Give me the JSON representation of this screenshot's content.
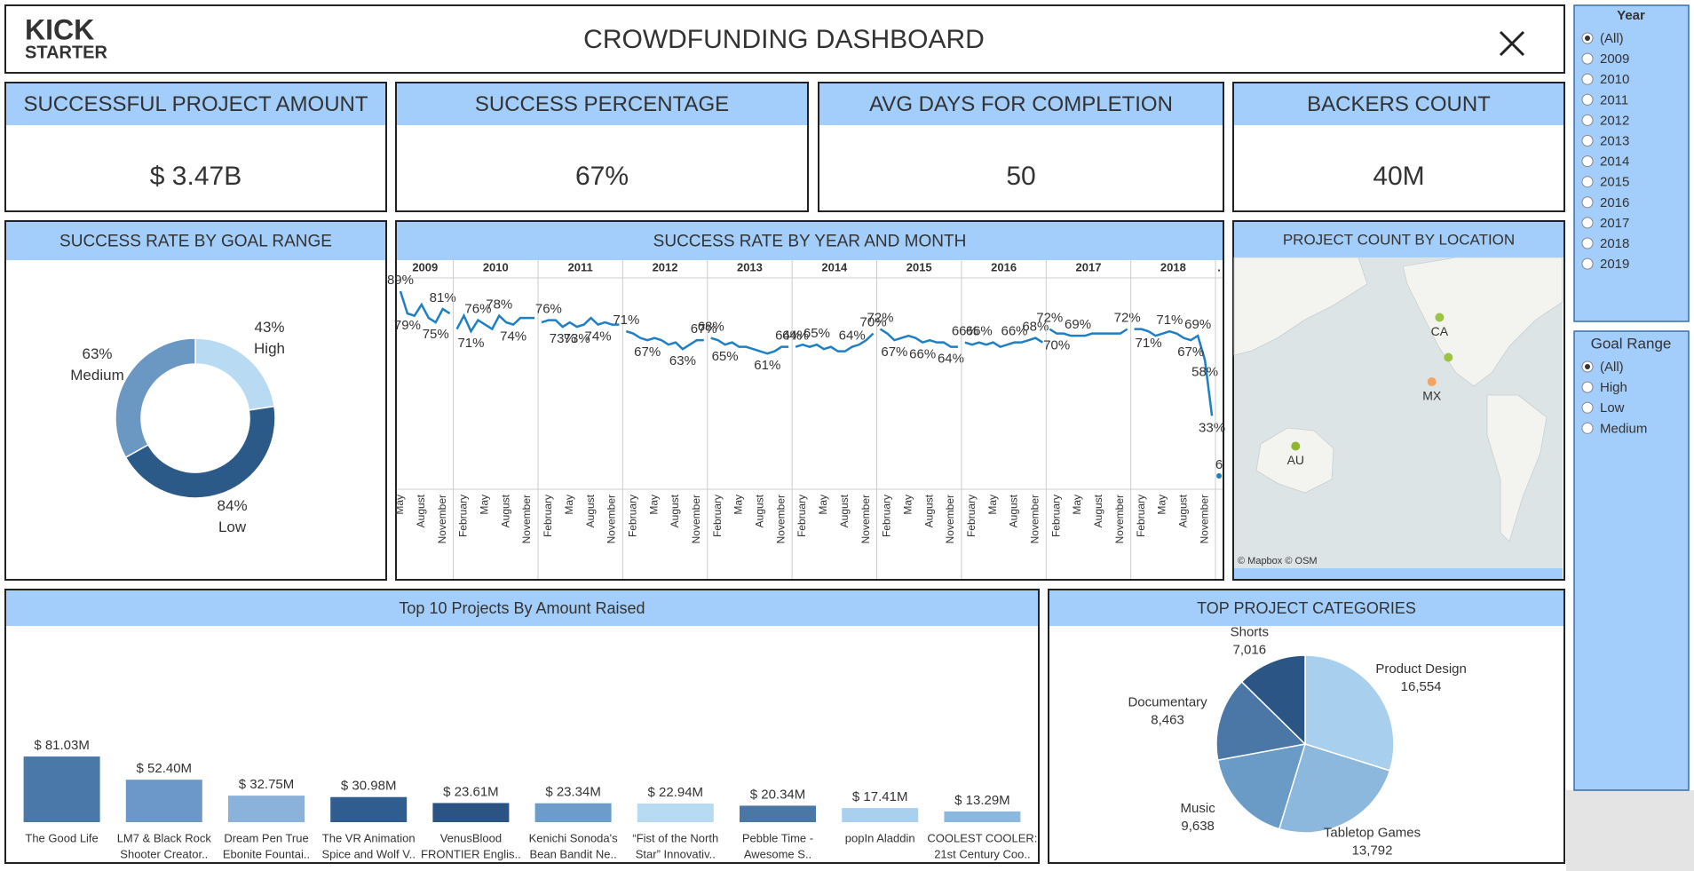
{
  "header": {
    "logo_top": "KICK",
    "logo_bottom": "STARTER",
    "title": "CROWDFUNDING DASHBOARD"
  },
  "kpis": [
    {
      "title": "SUCCESSFUL PROJECT AMOUNT",
      "value": "$ 3.47B"
    },
    {
      "title": "SUCCESS PERCENTAGE",
      "value": "67%"
    },
    {
      "title": "AVG DAYS FOR COMPLETION",
      "value": "50"
    },
    {
      "title": "BACKERS COUNT",
      "value": "40M"
    }
  ],
  "filters": [
    {
      "title": "Year",
      "options": [
        "(All)",
        "2009",
        "2010",
        "2011",
        "2012",
        "2013",
        "2014",
        "2015",
        "2016",
        "2017",
        "2018",
        "2019"
      ],
      "selected": 0
    },
    {
      "title": "Goal Range",
      "options": [
        "(All)",
        "High",
        "Low",
        "Medium"
      ],
      "selected": 0
    }
  ],
  "chart_data": [
    {
      "type": "donut",
      "title": "SUCCESS RATE BY GOAL RANGE",
      "categories": [
        "High",
        "Low",
        "Medium"
      ],
      "values": [
        43,
        84,
        63
      ],
      "value_labels": [
        "43%",
        "84%",
        "63%"
      ],
      "colors": [
        "#b8daf2",
        "#2c5a88",
        "#6b97c3"
      ]
    },
    {
      "type": "line",
      "title": "SUCCESS RATE BY YEAR AND MONTH",
      "color": "#1f7fc4",
      "ylim": [
        0,
        95
      ],
      "panels": [
        {
          "title": "2009",
          "categories": [
            "May",
            null,
            null,
            "August",
            null,
            null,
            "November",
            null
          ],
          "values": [
            89,
            79,
            78,
            83,
            77,
            75,
            81,
            79
          ],
          "value_labels": [
            "89%",
            "79%",
            null,
            null,
            null,
            "75%",
            "81%",
            null
          ]
        },
        {
          "title": "2010",
          "categories": [
            null,
            "February",
            null,
            null,
            "May",
            null,
            null,
            "August",
            null,
            null,
            "November",
            null
          ],
          "values": [
            72,
            78,
            71,
            76,
            74,
            72,
            78,
            75,
            74,
            77,
            77,
            77
          ],
          "value_labels": [
            null,
            null,
            "71%",
            "76%",
            null,
            null,
            "78%",
            null,
            "74%",
            null,
            null,
            null
          ]
        },
        {
          "title": "2011",
          "categories": [
            null,
            "February",
            null,
            null,
            "May",
            null,
            null,
            "August",
            null,
            null,
            "November",
            null
          ],
          "values": [
            75,
            76,
            76,
            73,
            75,
            73,
            74,
            77,
            74,
            75,
            74,
            74
          ],
          "value_labels": [
            null,
            "76%",
            null,
            "73%",
            null,
            "73%",
            null,
            null,
            "74%",
            null,
            null,
            null
          ]
        },
        {
          "title": "2012",
          "categories": [
            null,
            "February",
            null,
            null,
            "May",
            null,
            null,
            "August",
            null,
            null,
            "November",
            null
          ],
          "values": [
            71,
            70,
            68,
            67,
            68,
            67,
            65,
            66,
            63,
            65,
            67,
            67
          ],
          "value_labels": [
            "71%",
            null,
            null,
            "67%",
            null,
            null,
            null,
            null,
            "63%",
            null,
            null,
            "67%"
          ]
        },
        {
          "title": "2013",
          "categories": [
            null,
            "February",
            null,
            null,
            "May",
            null,
            null,
            "August",
            null,
            null,
            "November",
            null
          ],
          "values": [
            68,
            67,
            65,
            66,
            64,
            64,
            63,
            62,
            61,
            62,
            64,
            64
          ],
          "value_labels": [
            "68%",
            null,
            "65%",
            null,
            null,
            null,
            null,
            null,
            "61%",
            null,
            null,
            "64%"
          ]
        },
        {
          "title": "2014",
          "categories": [
            null,
            "February",
            null,
            null,
            "May",
            null,
            null,
            "August",
            null,
            null,
            "November",
            null
          ],
          "values": [
            64,
            65,
            64,
            65,
            63,
            64,
            62,
            62,
            64,
            65,
            67,
            70
          ],
          "value_labels": [
            "64%",
            null,
            null,
            "65%",
            null,
            null,
            null,
            null,
            "64%",
            null,
            null,
            "70%"
          ]
        },
        {
          "title": "2015",
          "categories": [
            null,
            "February",
            null,
            null,
            "May",
            null,
            null,
            "August",
            null,
            null,
            "November",
            null
          ],
          "values": [
            72,
            70,
            67,
            68,
            69,
            68,
            66,
            67,
            66,
            66,
            64,
            64
          ],
          "value_labels": [
            "72%",
            null,
            "67%",
            null,
            null,
            null,
            "66%",
            null,
            null,
            null,
            "64%",
            null
          ]
        },
        {
          "title": "2016",
          "categories": [
            null,
            "February",
            null,
            null,
            "May",
            null,
            null,
            "August",
            null,
            null,
            "November",
            null
          ],
          "values": [
            66,
            65,
            66,
            65,
            66,
            64,
            65,
            66,
            66,
            67,
            68,
            66
          ],
          "value_labels": [
            "66%",
            null,
            "66%",
            null,
            null,
            null,
            null,
            "66%",
            null,
            null,
            "68%",
            null
          ]
        },
        {
          "title": "2017",
          "categories": [
            null,
            "February",
            null,
            null,
            "May",
            null,
            null,
            "August",
            null,
            null,
            "November",
            null
          ],
          "values": [
            72,
            70,
            70,
            69,
            69,
            69,
            70,
            70,
            70,
            70,
            70,
            72
          ],
          "value_labels": [
            "72%",
            "70%",
            null,
            null,
            "69%",
            null,
            null,
            null,
            null,
            null,
            null,
            "72%"
          ]
        },
        {
          "title": "2018",
          "categories": [
            null,
            "February",
            null,
            null,
            "May",
            null,
            null,
            "August",
            null,
            null,
            "November",
            null
          ],
          "values": [
            72,
            72,
            71,
            69,
            70,
            71,
            70,
            68,
            67,
            69,
            58,
            33
          ],
          "value_labels": [
            null,
            null,
            "71%",
            null,
            null,
            "71%",
            null,
            null,
            "67%",
            "69%",
            "58%",
            "33%"
          ]
        },
        {
          "title": ".",
          "categories": [
            null
          ],
          "values": [
            6
          ],
          "value_labels": [
            "6"
          ]
        }
      ]
    },
    {
      "type": "map",
      "title": "PROJECT COUNT BY LOCATION",
      "attribution": "© Mapbox © OSM",
      "xlim": [
        78,
        377
      ],
      "ylim": [
        -60,
        80
      ],
      "points": [
        {
          "label": "CA",
          "x": 265,
          "y": 53,
          "color": "#9cc43f"
        },
        {
          "label": null,
          "x": 273,
          "y": 35,
          "color": "#9cc43f"
        },
        {
          "label": "MX",
          "x": 258,
          "y": 24,
          "color": "#f4a460"
        },
        {
          "label": "AU",
          "x": 134,
          "y": -5,
          "color": "#8fb82e"
        }
      ]
    },
    {
      "type": "bar",
      "title": "Top 10 Projects By Amount Raised",
      "categories": [
        [
          "The Good Life"
        ],
        [
          "LM7 & Black Rock",
          "Shooter Creator.."
        ],
        [
          "Dream Pen True",
          "Ebonite Fountai.."
        ],
        [
          "The VR Animation",
          "Spice and Wolf V.."
        ],
        [
          "VenusBlood",
          "FRONTIER Englis.."
        ],
        [
          "Kenichi Sonoda's",
          "Bean Bandit Ne.."
        ],
        [
          "“Fist of the North",
          "Star” Innovativ.."
        ],
        [
          "Pebble Time -",
          "Awesome S.."
        ],
        [
          "popIn Aladdin"
        ],
        [
          "COOLEST COOLER:",
          "21st Century Coo.."
        ]
      ],
      "values": [
        81030000,
        52400000,
        32750000,
        30980000,
        23610000,
        23340000,
        22940000,
        20340000,
        17410000,
        13290000
      ],
      "value_labels": [
        "$ 81.03M",
        "$ 52.40M",
        "$ 32.75M",
        "$ 30.98M",
        "$ 23.61M",
        "$ 23.34M",
        "$ 22.94M",
        "$ 20.34M",
        "$ 17.41M",
        "$ 13.29M"
      ],
      "colors": [
        "#4a78a8",
        "#6b98c8",
        "#8ab2da",
        "#2f5d8f",
        "#2b5384",
        "#6c9cc9",
        "#b6dbf3",
        "#4a77a6",
        "#a9d0ee",
        "#8bb8de"
      ],
      "ylim": [
        0,
        240000000
      ]
    },
    {
      "type": "pie",
      "title": "TOP PROJECT CATEGORIES",
      "categories": [
        "Product Design",
        "Tabletop Games",
        "Music",
        "Documentary",
        "Shorts"
      ],
      "values": [
        16554,
        13792,
        9638,
        8463,
        7016
      ],
      "value_labels": [
        "16,554",
        "13,792",
        "9,638",
        "8,463",
        "7,016"
      ],
      "colors": [
        "#a8cfee",
        "#8bb8dc",
        "#6a9bc7",
        "#4a77a6",
        "#2b5584"
      ]
    }
  ]
}
